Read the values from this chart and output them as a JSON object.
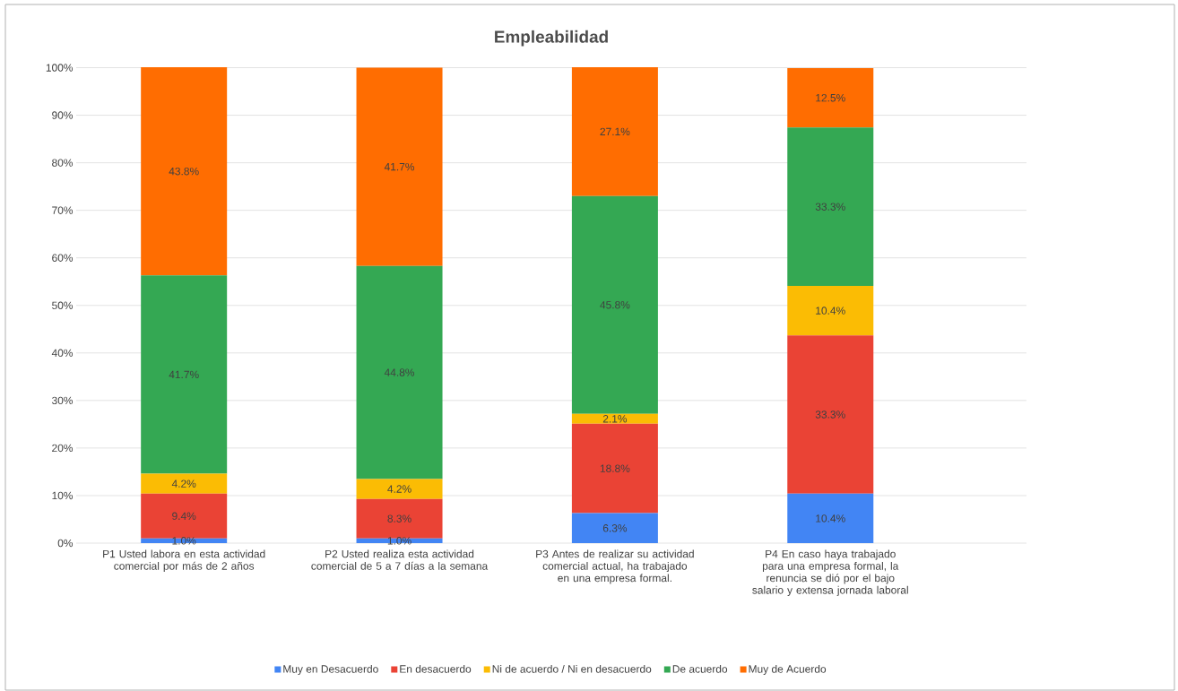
{
  "chart_data": {
    "type": "bar",
    "title": "Empleabilidad",
    "stacked": true,
    "grid": "y",
    "legend": "bottom",
    "categories": [
      "P1 Usted labora en esta actividad comercial por más de 2 años",
      "P2 Usted realiza esta actividad comercial de 5 a 7 días a la semana",
      "P3 Antes de realizar su actividad comercial actual, ha trabajado en una empresa formal.",
      "P4 En caso haya trabajado para una empresa formal, la renuncia se dió por el bajo salario y extensa jornada laboral"
    ],
    "ylim": [
      0,
      100.1
    ],
    "yticks": [
      {
        "value": 0,
        "label": "0%"
      },
      {
        "value": 10,
        "label": "10%"
      },
      {
        "value": 20,
        "label": "20%"
      },
      {
        "value": 30,
        "label": "30%"
      },
      {
        "value": 40,
        "label": "40%"
      },
      {
        "value": 50,
        "label": "50%"
      },
      {
        "value": 60,
        "label": "60%"
      },
      {
        "value": 70,
        "label": "70%"
      },
      {
        "value": 80,
        "label": "80%"
      },
      {
        "value": 90,
        "label": "90%"
      },
      {
        "value": 100,
        "label": "100%"
      }
    ],
    "series": [
      {
        "name": "Muy en Desacuerdo",
        "color": "#4285f4",
        "values": [
          1.0,
          1.0,
          6.3,
          10.4
        ],
        "value_labels": [
          "1.0%",
          "1.0%",
          "6.3%",
          "10.4%"
        ]
      },
      {
        "name": "En desacuerdo",
        "color": "#ea4335",
        "values": [
          9.4,
          8.3,
          18.8,
          33.3
        ],
        "value_labels": [
          "9.4%",
          "8.3%",
          "18.8%",
          "33.3%"
        ]
      },
      {
        "name": "Ni de acuerdo / Ni en desacuerdo",
        "color": "#fbbc04",
        "values": [
          4.2,
          4.2,
          2.1,
          10.4
        ],
        "value_labels": [
          "4.2%",
          "4.2%",
          "2.1%",
          "10.4%"
        ]
      },
      {
        "name": "De acuerdo",
        "color": "#34a853",
        "values": [
          41.7,
          44.8,
          45.8,
          33.3
        ],
        "value_labels": [
          "41.7%",
          "44.8%",
          "45.8%",
          "33.3%"
        ]
      },
      {
        "name": "Muy de Acuerdo",
        "color": "#ff6d01",
        "values": [
          43.8,
          41.7,
          27.1,
          12.5
        ],
        "value_labels": [
          "43.8%",
          "41.7%",
          "27.1%",
          "12.5%"
        ]
      }
    ]
  }
}
